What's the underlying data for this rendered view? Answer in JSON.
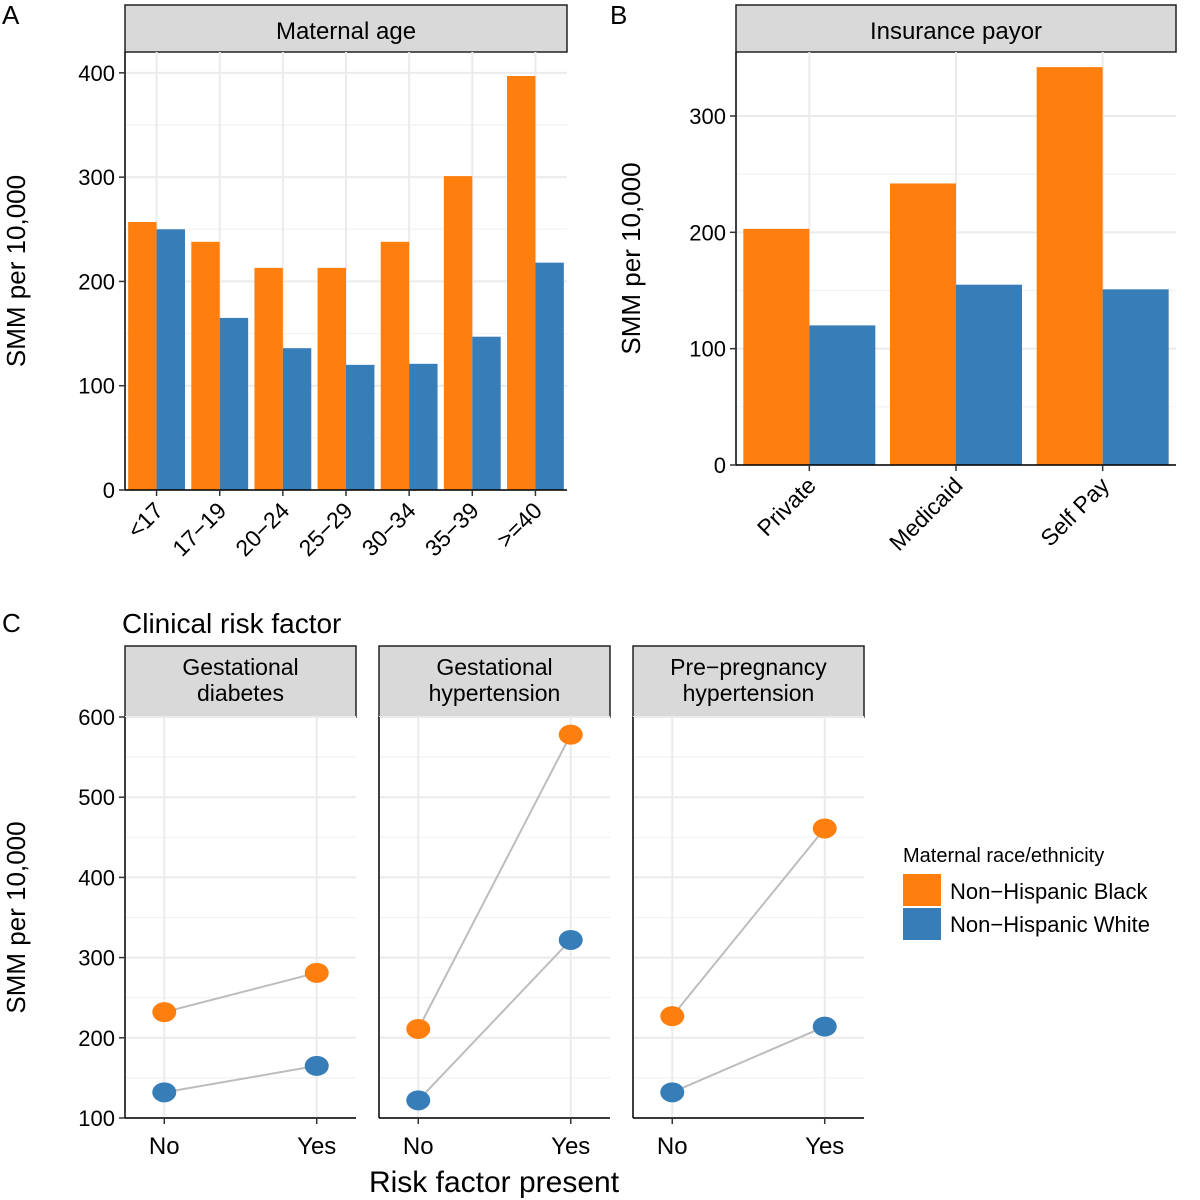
{
  "colors": {
    "black_group": "#FF7F0E",
    "white_group": "#377EB8",
    "strip_fill": "#D9D9D9",
    "grid": "#EBEBEB",
    "connector": "#BDBDBD"
  },
  "chart_data": [
    {
      "panel_letter": "A",
      "type": "bar",
      "title": "Maternal age",
      "xlabel": "",
      "ylabel": "SMM per 10,000",
      "ylim": [
        0,
        420
      ],
      "yticks": [
        0,
        100,
        200,
        300,
        400
      ],
      "categories": [
        "<17",
        "17−19",
        "20−24",
        "25−29",
        "30−34",
        "35−39",
        ">=40"
      ],
      "series": [
        {
          "name": "Non−Hispanic Black",
          "values": [
            257,
            238,
            213,
            213,
            238,
            301,
            397
          ]
        },
        {
          "name": "Non−Hispanic White",
          "values": [
            250,
            165,
            136,
            120,
            121,
            147,
            218
          ]
        }
      ]
    },
    {
      "panel_letter": "B",
      "type": "bar",
      "title": "Insurance payor",
      "xlabel": "",
      "ylabel": "SMM per 10,000",
      "ylim": [
        0,
        355
      ],
      "yticks": [
        0,
        100,
        200,
        300
      ],
      "categories": [
        "Private",
        "Medicaid",
        "Self Pay"
      ],
      "series": [
        {
          "name": "Non−Hispanic Black",
          "values": [
            203,
            242,
            342
          ]
        },
        {
          "name": "Non−Hispanic White",
          "values": [
            120,
            155,
            151
          ]
        }
      ]
    },
    {
      "panel_letter": "C",
      "type": "line",
      "title": "Clinical risk factor",
      "xlabel": "Risk factor present",
      "ylabel": "SMM per 10,000",
      "ylim": [
        100,
        600
      ],
      "yticks": [
        100,
        200,
        300,
        400,
        500,
        600
      ],
      "x": [
        "No",
        "Yes"
      ],
      "facets": [
        {
          "label": "Gestational\ndiabetes",
          "series": [
            {
              "name": "Non−Hispanic Black",
              "values": [
                232,
                281
              ]
            },
            {
              "name": "Non−Hispanic White",
              "values": [
                132,
                165
              ]
            }
          ]
        },
        {
          "label": "Gestational\nhypertension",
          "series": [
            {
              "name": "Non−Hispanic Black",
              "values": [
                211,
                578
              ]
            },
            {
              "name": "Non−Hispanic White",
              "values": [
                122,
                322
              ]
            }
          ]
        },
        {
          "label": "Pre−pregnancy\nhypertension",
          "series": [
            {
              "name": "Non−Hispanic Black",
              "values": [
                227,
                461
              ]
            },
            {
              "name": "Non−Hispanic White",
              "values": [
                132,
                214
              ]
            }
          ]
        }
      ]
    }
  ],
  "legend": {
    "title": "Maternal race/ethnicity",
    "entries": [
      "Non−Hispanic Black",
      "Non−Hispanic White"
    ]
  }
}
